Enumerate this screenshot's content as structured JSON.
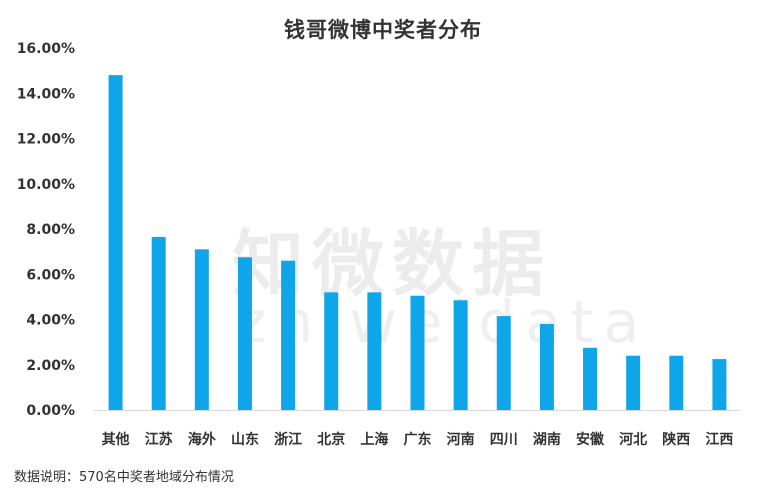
{
  "watermark": {
    "cn": "知微数据",
    "en": "zhiweidata"
  },
  "footnote": "数据说明：570名中奖者地域分布情况",
  "colors": {
    "bar": "#0ea5e9",
    "axis": "#d9d9d9"
  },
  "chart_data": {
    "type": "bar",
    "title": "钱哥微博中奖者分布",
    "xlabel": "",
    "ylabel": "",
    "categories": [
      "其他",
      "江苏",
      "海外",
      "山东",
      "浙江",
      "北京",
      "上海",
      "广东",
      "河南",
      "四川",
      "湖南",
      "安徽",
      "河北",
      "陕西",
      "江西"
    ],
    "values": [
      14.8,
      7.65,
      7.1,
      6.75,
      6.6,
      5.2,
      5.2,
      5.05,
      4.85,
      4.15,
      3.8,
      2.75,
      2.4,
      2.4,
      2.25
    ],
    "ylim": [
      0,
      16
    ],
    "yticks": [
      "0.00%",
      "2.00%",
      "4.00%",
      "6.00%",
      "8.00%",
      "10.00%",
      "12.00%",
      "14.00%",
      "16.00%"
    ],
    "grid": false
  }
}
